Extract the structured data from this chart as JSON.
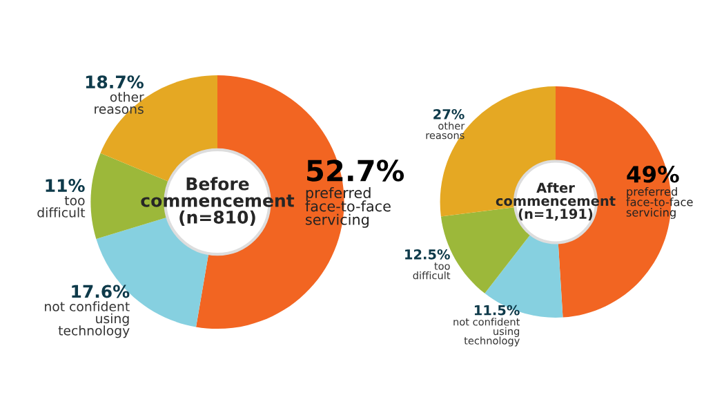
{
  "chart_data": [
    {
      "type": "donut",
      "title": "Before\ncommencement\n(n=810)",
      "categories": [
        "preferred\nface-to-face\nservicing",
        "not confident\nusing\ntechnology",
        "too\ndifficult",
        "other\nreasons"
      ],
      "values": [
        52.7,
        17.6,
        11,
        18.7
      ],
      "colors": [
        "#f26522",
        "#86d0e0",
        "#9cb83a",
        "#e5a823"
      ],
      "value_labels": [
        "52.7%",
        "17.6%",
        "11%",
        "18.7%"
      ]
    },
    {
      "type": "donut",
      "title": "After\ncommencement\n(n=1,191)",
      "categories": [
        "preferred\nface-to-face\nservicing",
        "not confident\nusing\ntechnology",
        "too\ndifficult",
        "other\nreasons"
      ],
      "values": [
        49,
        11.5,
        12.5,
        27
      ],
      "colors": [
        "#f26522",
        "#86d0e0",
        "#9cb83a",
        "#e5a823"
      ],
      "value_labels": [
        "49%",
        "11.5%",
        "12.5%",
        "27%"
      ]
    }
  ]
}
